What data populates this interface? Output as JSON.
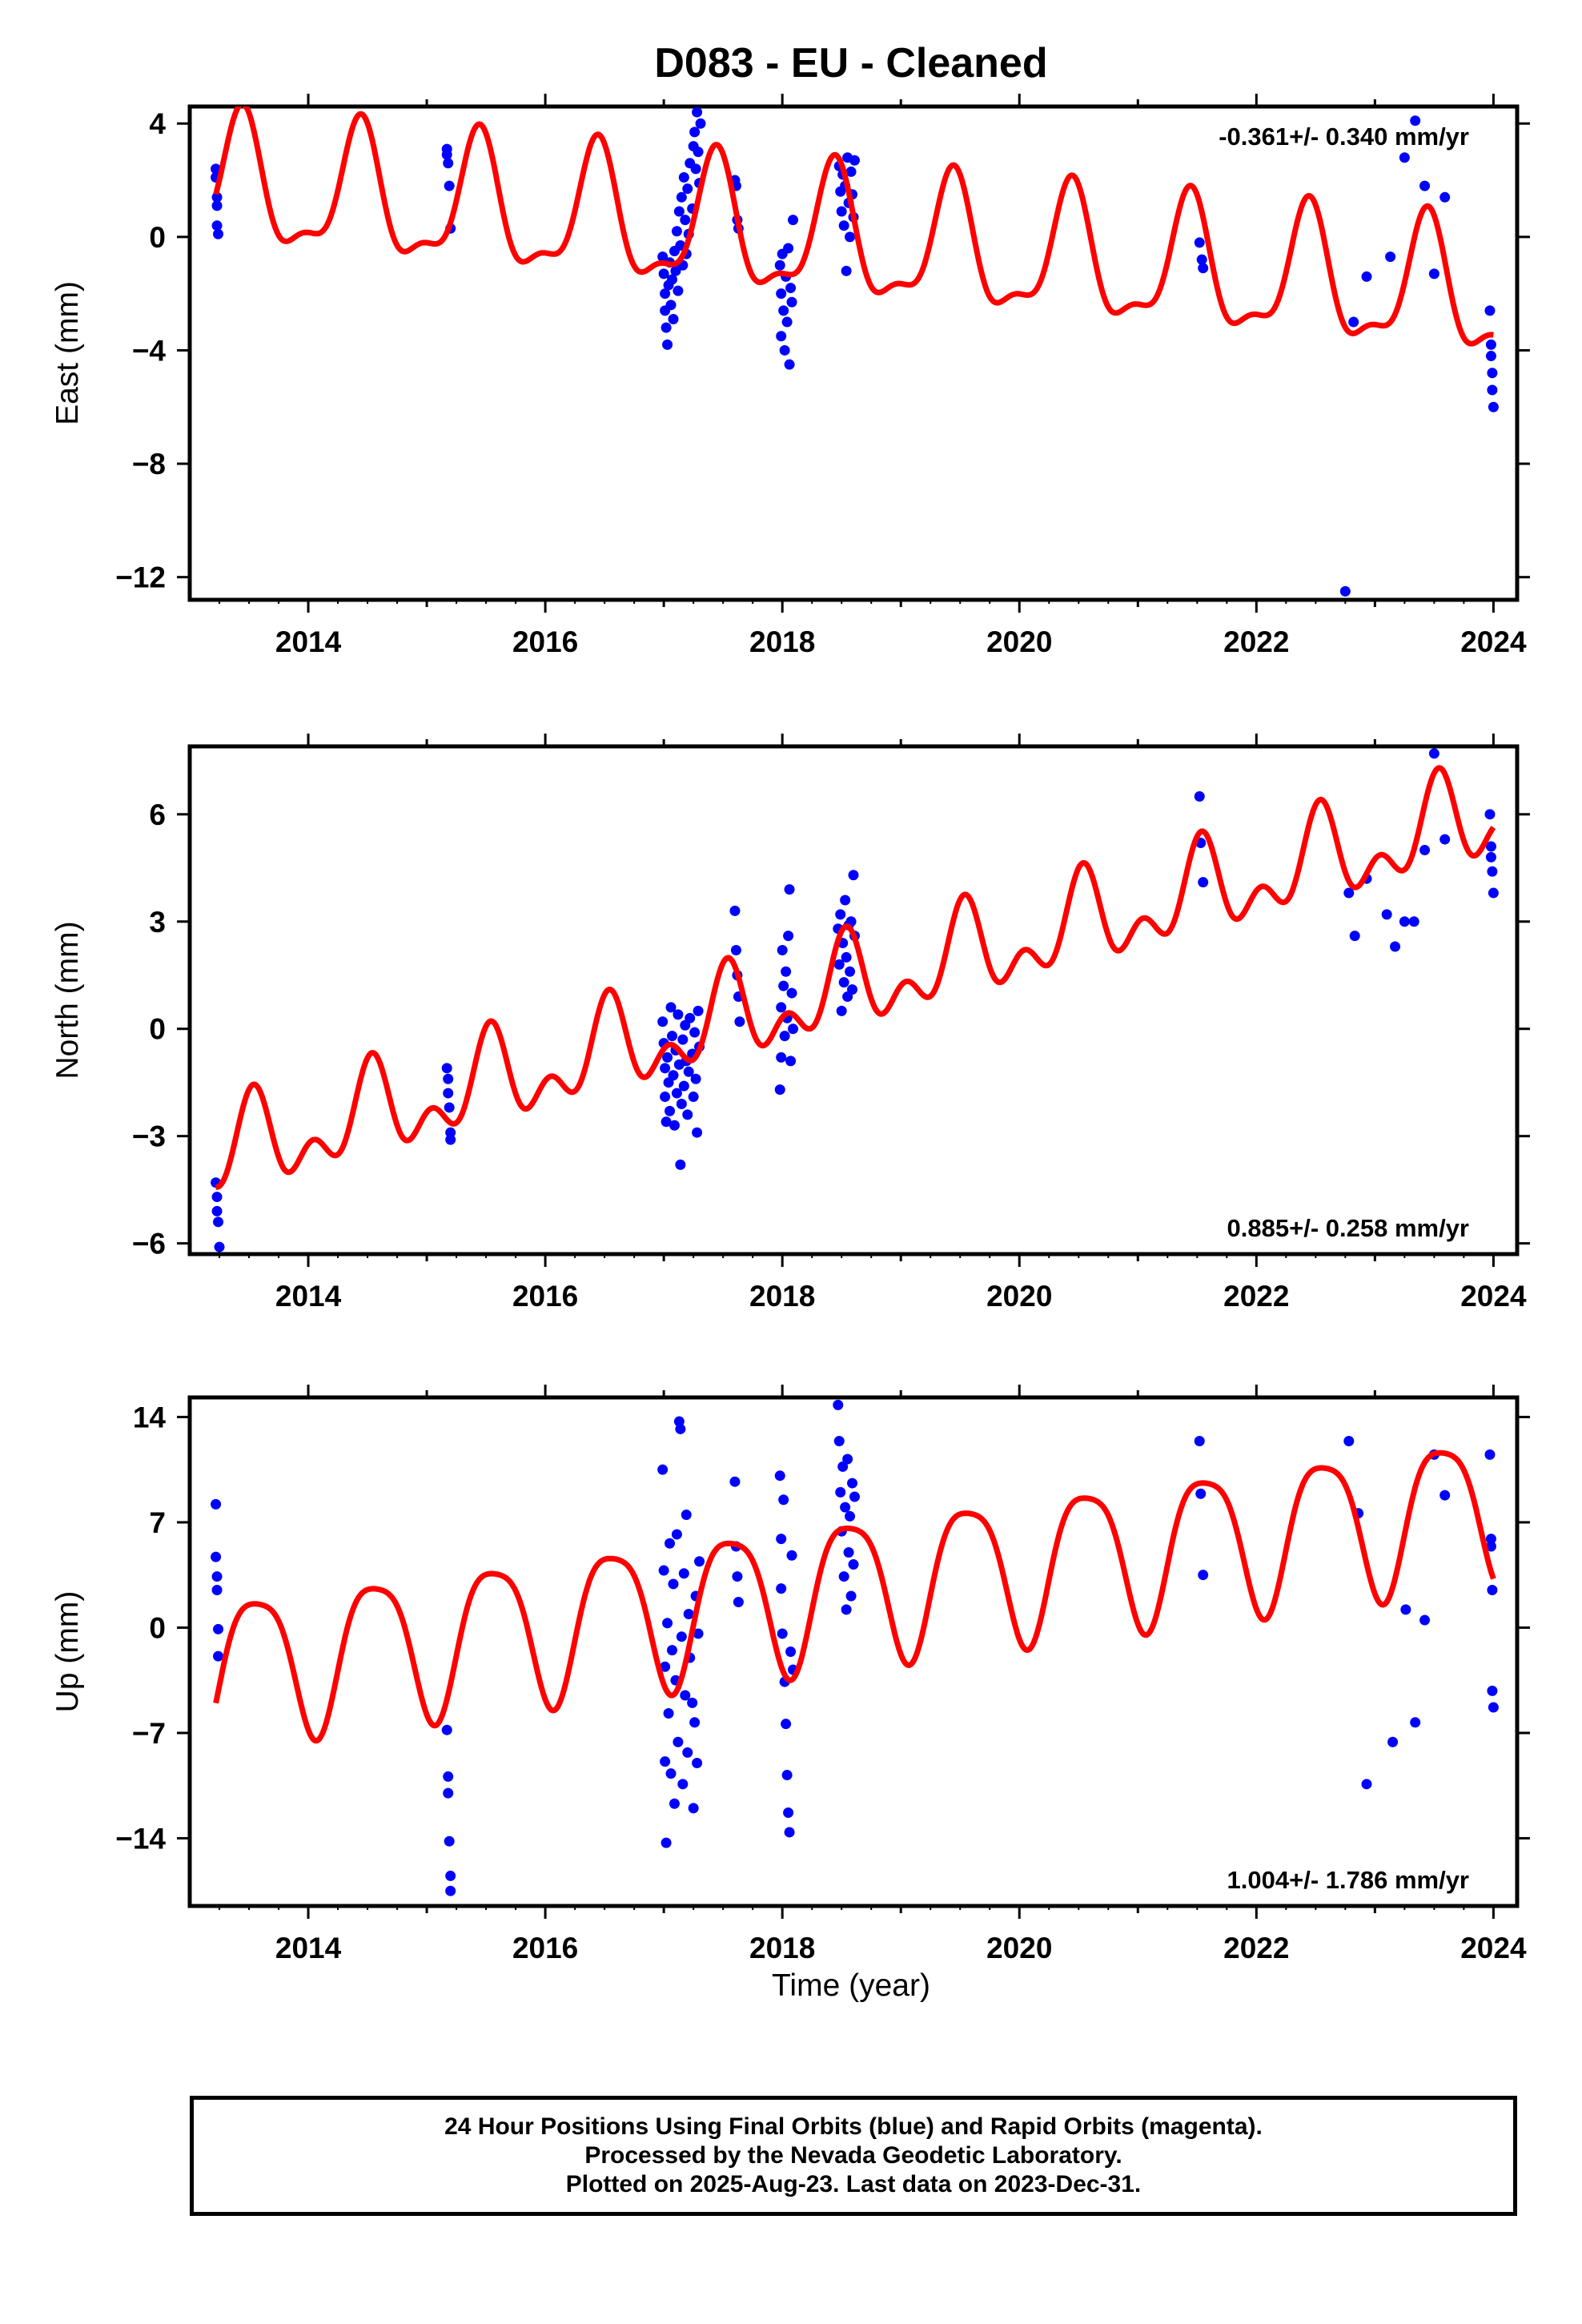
{
  "title": "D083  - EU - Cleaned",
  "xlabel": "Time (year)",
  "footer": {
    "line1": "24 Hour Positions Using Final Orbits (blue) and Rapid Orbits (magenta).",
    "line2": "Processed by the Nevada Geodetic Laboratory.",
    "line3": "Plotted on 2025-Aug-23. Last data on 2023-Dec-31."
  },
  "colors": {
    "data": "#0000ff",
    "model": "#ff0000",
    "axis": "#000000"
  },
  "chart_data": [
    {
      "type": "scatter",
      "name": "east",
      "ylabel": "East (mm)",
      "rate_text": "-0.361+/- 0.340 mm/yr",
      "rate_position": "top-right",
      "xlim": [
        2013.0,
        2024.2
      ],
      "ylim": [
        -12.8,
        4.6
      ],
      "yticks": [
        4,
        0,
        -4,
        -8,
        -12
      ],
      "ytick_labels": [
        "4",
        "0",
        "−4",
        "−8",
        "−12"
      ],
      "xticks": [
        2014,
        2016,
        2018,
        2020,
        2022,
        2024
      ],
      "xtick_labels": [
        "2014",
        "2016",
        "2018",
        "2020",
        "2022",
        "2024"
      ],
      "model": {
        "offset": 1.8,
        "rate": -0.361,
        "ref": 2013.2,
        "annual_amp": 2.2,
        "annual_phase": 0.1,
        "semi_amp": 0.8,
        "semi_phase": -1.6
      },
      "points": [
        [
          2013.22,
          2.4
        ],
        [
          2013.22,
          2.1
        ],
        [
          2013.23,
          1.4
        ],
        [
          2013.23,
          1.1
        ],
        [
          2013.23,
          0.4
        ],
        [
          2013.24,
          0.1
        ],
        [
          2015.17,
          3.1
        ],
        [
          2015.17,
          2.9
        ],
        [
          2015.18,
          2.6
        ],
        [
          2015.19,
          1.8
        ],
        [
          2015.2,
          0.3
        ],
        [
          2016.99,
          -0.7
        ],
        [
          2017.0,
          -1.3
        ],
        [
          2017.01,
          -2.0
        ],
        [
          2017.01,
          -2.6
        ],
        [
          2017.02,
          -3.2
        ],
        [
          2017.03,
          -3.8
        ],
        [
          2017.04,
          -1.7
        ],
        [
          2017.05,
          -0.9
        ],
        [
          2017.06,
          -2.4
        ],
        [
          2017.07,
          -1.5
        ],
        [
          2017.08,
          -2.9
        ],
        [
          2017.09,
          -0.5
        ],
        [
          2017.1,
          -1.2
        ],
        [
          2017.11,
          0.2
        ],
        [
          2017.12,
          -1.9
        ],
        [
          2017.13,
          0.9
        ],
        [
          2017.14,
          -0.3
        ],
        [
          2017.15,
          1.4
        ],
        [
          2017.16,
          -1.0
        ],
        [
          2017.17,
          2.1
        ],
        [
          2017.18,
          0.6
        ],
        [
          2017.19,
          -0.6
        ],
        [
          2017.2,
          1.7
        ],
        [
          2017.21,
          0.1
        ],
        [
          2017.22,
          2.6
        ],
        [
          2017.24,
          1.0
        ],
        [
          2017.25,
          3.2
        ],
        [
          2017.26,
          3.7
        ],
        [
          2017.27,
          2.4
        ],
        [
          2017.28,
          4.4
        ],
        [
          2017.29,
          3.0
        ],
        [
          2017.3,
          1.9
        ],
        [
          2017.31,
          4.0
        ],
        [
          2017.6,
          2.0
        ],
        [
          2017.61,
          1.8
        ],
        [
          2017.62,
          0.6
        ],
        [
          2017.63,
          0.3
        ],
        [
          2017.98,
          -1.0
        ],
        [
          2017.99,
          -2.0
        ],
        [
          2017.99,
          -3.5
        ],
        [
          2018.0,
          -0.6
        ],
        [
          2018.01,
          -2.6
        ],
        [
          2018.02,
          -4.0
        ],
        [
          2018.03,
          -1.4
        ],
        [
          2018.04,
          -3.0
        ],
        [
          2018.05,
          -0.4
        ],
        [
          2018.06,
          -4.5
        ],
        [
          2018.07,
          -1.8
        ],
        [
          2018.08,
          -2.3
        ],
        [
          2018.09,
          0.6
        ],
        [
          2018.48,
          2.5
        ],
        [
          2018.49,
          1.6
        ],
        [
          2018.5,
          0.9
        ],
        [
          2018.51,
          2.2
        ],
        [
          2018.52,
          0.4
        ],
        [
          2018.53,
          1.8
        ],
        [
          2018.54,
          -1.2
        ],
        [
          2018.55,
          2.8
        ],
        [
          2018.56,
          1.2
        ],
        [
          2018.57,
          0.0
        ],
        [
          2018.58,
          2.3
        ],
        [
          2018.59,
          1.5
        ],
        [
          2018.6,
          0.7
        ],
        [
          2018.61,
          2.7
        ],
        [
          2021.52,
          -0.2
        ],
        [
          2021.54,
          -0.8
        ],
        [
          2021.55,
          -1.1
        ],
        [
          2022.75,
          -12.5
        ],
        [
          2022.82,
          -3.0
        ],
        [
          2022.93,
          -1.4
        ],
        [
          2023.13,
          -0.7
        ],
        [
          2023.25,
          2.8
        ],
        [
          2023.34,
          4.1
        ],
        [
          2023.42,
          1.8
        ],
        [
          2023.5,
          -1.3
        ],
        [
          2023.59,
          1.4
        ],
        [
          2023.97,
          -2.6
        ],
        [
          2023.98,
          -3.8
        ],
        [
          2023.98,
          -4.2
        ],
        [
          2023.99,
          -4.8
        ],
        [
          2023.99,
          -5.4
        ],
        [
          2024.0,
          -6.0
        ]
      ]
    },
    {
      "type": "scatter",
      "name": "north",
      "ylabel": "North (mm)",
      "rate_text": "0.885+/- 0.258 mm/yr",
      "rate_position": "bottom-right",
      "xlim": [
        2013.0,
        2024.2
      ],
      "ylim": [
        -6.3,
        7.9
      ],
      "yticks": [
        6,
        3,
        0,
        -3,
        -6
      ],
      "ytick_labels": [
        "6",
        "3",
        "0",
        "−3",
        "−6"
      ],
      "xticks": [
        2014,
        2016,
        2018,
        2020,
        2022,
        2024
      ],
      "xtick_labels": [
        "2014",
        "2016",
        "2018",
        "2020",
        "2022",
        "2024"
      ],
      "model": {
        "offset": -3.6,
        "rate": 0.885,
        "ref": 2013.2,
        "annual_amp": 1.0,
        "annual_phase": -0.5,
        "semi_amp": 0.75,
        "semi_phase": -2.7
      },
      "points": [
        [
          2013.22,
          -4.3
        ],
        [
          2013.23,
          -4.7
        ],
        [
          2013.23,
          -5.1
        ],
        [
          2013.24,
          -5.4
        ],
        [
          2013.25,
          -6.1
        ],
        [
          2015.17,
          -1.1
        ],
        [
          2015.18,
          -1.4
        ],
        [
          2015.18,
          -1.8
        ],
        [
          2015.19,
          -2.2
        ],
        [
          2015.2,
          -2.9
        ],
        [
          2015.2,
          -3.1
        ],
        [
          2016.99,
          0.2
        ],
        [
          2017.0,
          -0.4
        ],
        [
          2017.01,
          -1.1
        ],
        [
          2017.01,
          -1.9
        ],
        [
          2017.02,
          -2.6
        ],
        [
          2017.03,
          -0.8
        ],
        [
          2017.04,
          -1.5
        ],
        [
          2017.05,
          -2.3
        ],
        [
          2017.06,
          0.6
        ],
        [
          2017.07,
          -0.2
        ],
        [
          2017.08,
          -1.3
        ],
        [
          2017.09,
          -2.7
        ],
        [
          2017.1,
          -0.6
        ],
        [
          2017.11,
          -1.8
        ],
        [
          2017.12,
          0.4
        ],
        [
          2017.13,
          -1.0
        ],
        [
          2017.14,
          -3.8
        ],
        [
          2017.15,
          -2.1
        ],
        [
          2017.16,
          -0.3
        ],
        [
          2017.17,
          -1.6
        ],
        [
          2017.18,
          0.1
        ],
        [
          2017.19,
          -0.9
        ],
        [
          2017.2,
          -2.4
        ],
        [
          2017.21,
          -1.2
        ],
        [
          2017.22,
          0.3
        ],
        [
          2017.24,
          -0.7
        ],
        [
          2017.25,
          -1.9
        ],
        [
          2017.26,
          -0.1
        ],
        [
          2017.27,
          -1.4
        ],
        [
          2017.28,
          -2.9
        ],
        [
          2017.29,
          0.5
        ],
        [
          2017.3,
          -0.5
        ],
        [
          2017.6,
          3.3
        ],
        [
          2017.61,
          2.2
        ],
        [
          2017.62,
          1.5
        ],
        [
          2017.63,
          0.9
        ],
        [
          2017.64,
          0.2
        ],
        [
          2017.98,
          -1.7
        ],
        [
          2017.99,
          -0.8
        ],
        [
          2017.99,
          0.6
        ],
        [
          2018.0,
          2.2
        ],
        [
          2018.01,
          1.2
        ],
        [
          2018.02,
          -0.2
        ],
        [
          2018.03,
          1.6
        ],
        [
          2018.04,
          0.3
        ],
        [
          2018.05,
          2.6
        ],
        [
          2018.06,
          3.9
        ],
        [
          2018.07,
          -0.9
        ],
        [
          2018.08,
          1.0
        ],
        [
          2018.09,
          0.0
        ],
        [
          2018.47,
          2.8
        ],
        [
          2018.48,
          1.8
        ],
        [
          2018.49,
          3.2
        ],
        [
          2018.5,
          0.5
        ],
        [
          2018.51,
          2.4
        ],
        [
          2018.52,
          1.3
        ],
        [
          2018.53,
          3.6
        ],
        [
          2018.54,
          2.0
        ],
        [
          2018.55,
          0.9
        ],
        [
          2018.56,
          2.9
        ],
        [
          2018.57,
          1.6
        ],
        [
          2018.58,
          3.0
        ],
        [
          2018.59,
          1.1
        ],
        [
          2018.6,
          4.3
        ],
        [
          2018.61,
          2.6
        ],
        [
          2021.52,
          6.5
        ],
        [
          2021.53,
          5.2
        ],
        [
          2021.55,
          4.1
        ],
        [
          2022.78,
          3.8
        ],
        [
          2022.83,
          2.6
        ],
        [
          2022.93,
          4.2
        ],
        [
          2023.1,
          3.2
        ],
        [
          2023.17,
          2.3
        ],
        [
          2023.25,
          3.0
        ],
        [
          2023.33,
          3.0
        ],
        [
          2023.42,
          5.0
        ],
        [
          2023.5,
          7.7
        ],
        [
          2023.59,
          5.3
        ],
        [
          2023.97,
          6.0
        ],
        [
          2023.98,
          5.1
        ],
        [
          2023.98,
          4.8
        ],
        [
          2023.99,
          4.4
        ],
        [
          2024.0,
          3.8
        ]
      ]
    },
    {
      "type": "scatter",
      "name": "up",
      "ylabel": "Up (mm)",
      "rate_text": "1.004+/- 1.786 mm/yr",
      "rate_position": "bottom-right",
      "xlim": [
        2013.0,
        2024.2
      ],
      "ylim": [
        -18.5,
        15.3
      ],
      "yticks": [
        14,
        7,
        0,
        -7,
        -14
      ],
      "ytick_labels": [
        "14",
        "7",
        "0",
        "−7",
        "−14"
      ],
      "xticks": [
        2014,
        2016,
        2018,
        2020,
        2022,
        2024
      ],
      "xtick_labels": [
        "2014",
        "2016",
        "2018",
        "2020",
        "2022",
        "2024"
      ],
      "model": {
        "offset": -2.6,
        "rate": 1.004,
        "ref": 2013.2,
        "annual_amp": 4.8,
        "annual_phase": -0.72,
        "semi_amp": 1.0,
        "semi_phase": 0.0
      },
      "points": [
        [
          2013.22,
          8.2
        ],
        [
          2013.22,
          4.7
        ],
        [
          2013.23,
          3.4
        ],
        [
          2013.23,
          2.5
        ],
        [
          2013.24,
          -0.1
        ],
        [
          2013.24,
          -1.9
        ],
        [
          2015.17,
          -6.8
        ],
        [
          2015.18,
          -9.9
        ],
        [
          2015.18,
          -11.0
        ],
        [
          2015.19,
          -14.2
        ],
        [
          2015.2,
          -16.5
        ],
        [
          2015.2,
          -17.5
        ],
        [
          2016.99,
          10.5
        ],
        [
          2017.0,
          3.8
        ],
        [
          2017.01,
          -2.6
        ],
        [
          2017.01,
          -8.9
        ],
        [
          2017.02,
          -14.3
        ],
        [
          2017.03,
          0.3
        ],
        [
          2017.04,
          -5.7
        ],
        [
          2017.05,
          5.6
        ],
        [
          2017.06,
          -9.7
        ],
        [
          2017.07,
          -1.5
        ],
        [
          2017.08,
          2.9
        ],
        [
          2017.09,
          -11.7
        ],
        [
          2017.1,
          -3.5
        ],
        [
          2017.11,
          6.2
        ],
        [
          2017.12,
          -7.6
        ],
        [
          2017.13,
          13.7
        ],
        [
          2017.14,
          13.2
        ],
        [
          2017.15,
          -0.6
        ],
        [
          2017.16,
          -10.4
        ],
        [
          2017.17,
          3.6
        ],
        [
          2017.18,
          -4.5
        ],
        [
          2017.19,
          7.5
        ],
        [
          2017.2,
          -8.3
        ],
        [
          2017.21,
          0.9
        ],
        [
          2017.22,
          -2.0
        ],
        [
          2017.24,
          -5.0
        ],
        [
          2017.25,
          -12.0
        ],
        [
          2017.26,
          -6.3
        ],
        [
          2017.27,
          2.1
        ],
        [
          2017.28,
          -9.0
        ],
        [
          2017.29,
          -0.4
        ],
        [
          2017.3,
          4.4
        ],
        [
          2017.6,
          9.7
        ],
        [
          2017.61,
          5.4
        ],
        [
          2017.62,
          3.4
        ],
        [
          2017.63,
          1.7
        ],
        [
          2017.98,
          10.1
        ],
        [
          2017.99,
          5.9
        ],
        [
          2017.99,
          2.6
        ],
        [
          2018.0,
          -0.4
        ],
        [
          2018.01,
          8.5
        ],
        [
          2018.02,
          -3.6
        ],
        [
          2018.03,
          -6.4
        ],
        [
          2018.04,
          -9.8
        ],
        [
          2018.05,
          -12.3
        ],
        [
          2018.06,
          -13.6
        ],
        [
          2018.07,
          -1.6
        ],
        [
          2018.08,
          4.8
        ],
        [
          2018.09,
          -2.8
        ],
        [
          2018.47,
          14.8
        ],
        [
          2018.48,
          12.4
        ],
        [
          2018.49,
          9.0
        ],
        [
          2018.5,
          6.4
        ],
        [
          2018.51,
          10.7
        ],
        [
          2018.52,
          3.4
        ],
        [
          2018.53,
          8.0
        ],
        [
          2018.54,
          1.2
        ],
        [
          2018.55,
          11.2
        ],
        [
          2018.56,
          5.0
        ],
        [
          2018.57,
          7.4
        ],
        [
          2018.58,
          2.1
        ],
        [
          2018.59,
          9.6
        ],
        [
          2018.6,
          4.2
        ],
        [
          2018.61,
          8.7
        ],
        [
          2021.52,
          12.4
        ],
        [
          2021.53,
          8.9
        ],
        [
          2021.55,
          3.5
        ],
        [
          2022.78,
          12.4
        ],
        [
          2022.86,
          7.6
        ],
        [
          2022.93,
          -10.4
        ],
        [
          2023.15,
          -7.6
        ],
        [
          2023.26,
          1.2
        ],
        [
          2023.34,
          -6.3
        ],
        [
          2023.42,
          0.5
        ],
        [
          2023.5,
          11.5
        ],
        [
          2023.59,
          8.8
        ],
        [
          2023.97,
          11.5
        ],
        [
          2023.98,
          5.9
        ],
        [
          2023.98,
          5.4
        ],
        [
          2023.99,
          2.5
        ],
        [
          2023.99,
          -4.2
        ],
        [
          2024.0,
          -5.3
        ]
      ]
    }
  ]
}
